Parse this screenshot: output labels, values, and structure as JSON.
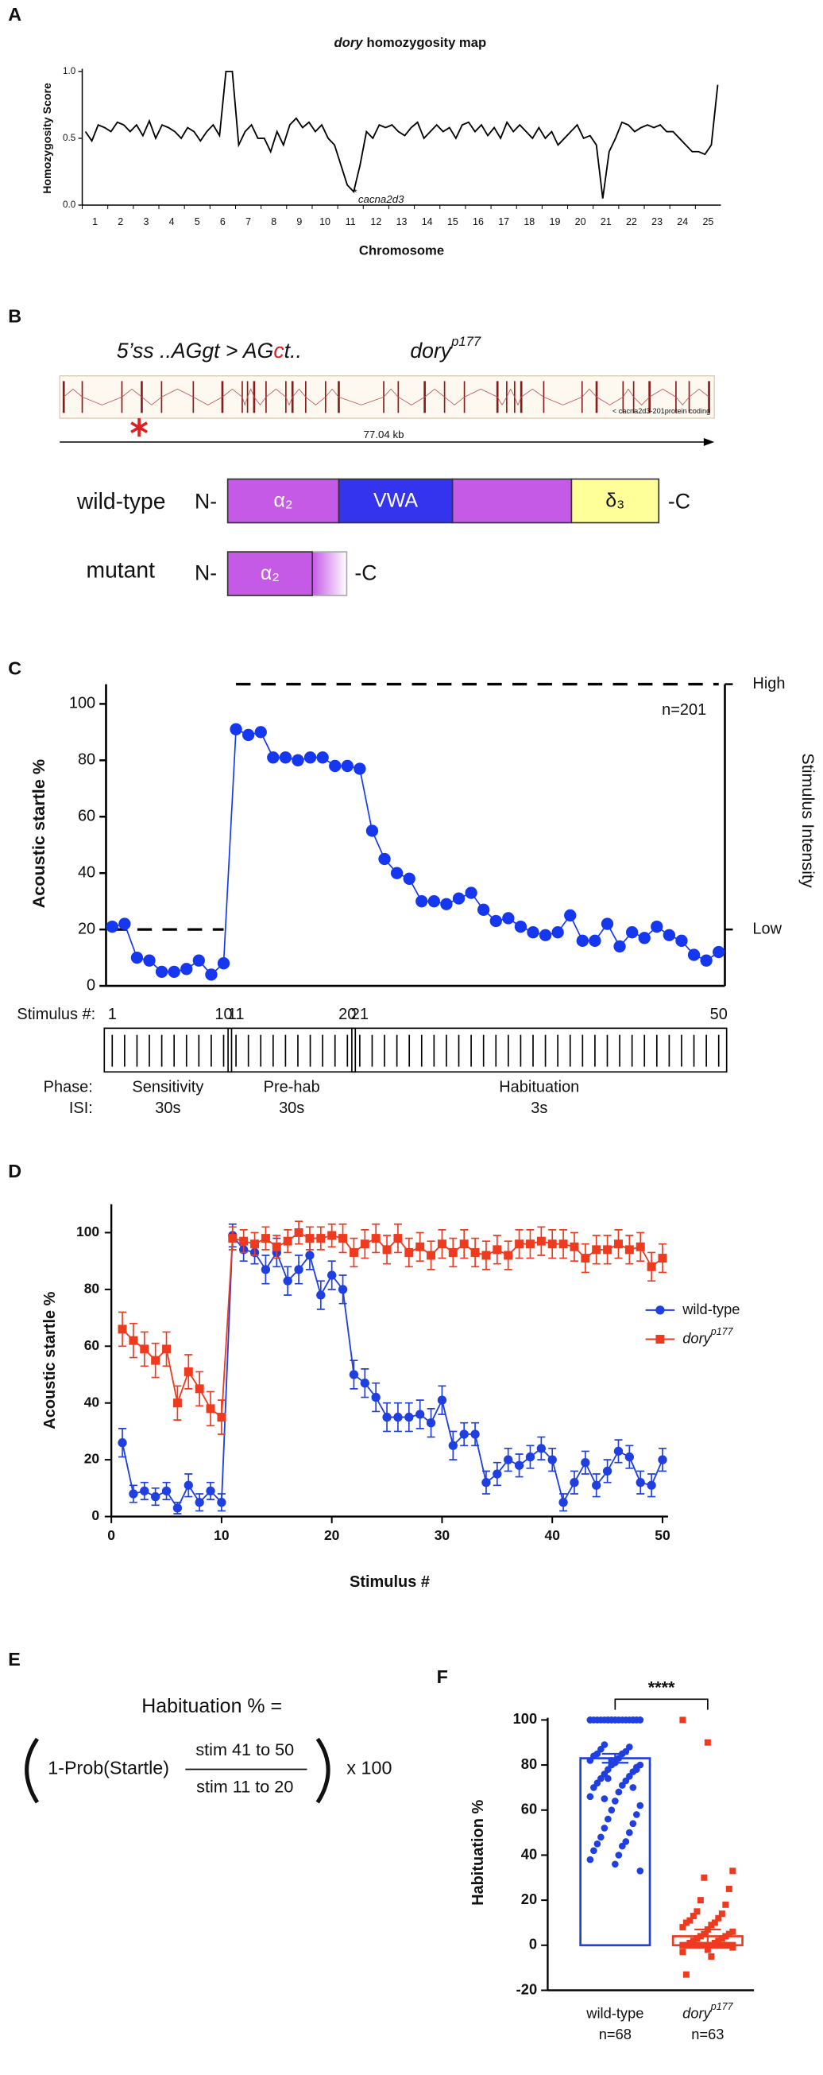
{
  "panel_labels": [
    "A",
    "B",
    "C",
    "D",
    "E",
    "F"
  ],
  "gene": {
    "mutation_prefix": "5’ss ..AGgt > AG",
    "mutation_changed": "c",
    "mutation_suffix": "t..",
    "allele": "dory",
    "allele_sup": "p177",
    "transcript": "< cacna2d3-201protein coding",
    "length": "77.04 kb",
    "wild_type": {
      "label": "wild-type",
      "n_term": "N-",
      "c_term": "-C",
      "domains": [
        "α₂",
        "VWA",
        "δ₃"
      ]
    },
    "mutant": {
      "label": "mutant",
      "n_term": "N-",
      "c_term": "-C",
      "domains": [
        "α₂"
      ]
    }
  },
  "formula": {
    "lhs": "Habituation % =",
    "prob": "1-Prob(Startle)",
    "numerator": "stim 41 to 50",
    "denominator": "stim 11 to 20",
    "factor": "x 100"
  },
  "chart_data": [
    {
      "type": "line",
      "title_gene": "dory",
      "title": "homozygosity map",
      "ylabel": "Homozygosity Score",
      "xlabel": "Chromosome",
      "annotation_marker": "*",
      "annotation": "cacna2d3",
      "color": "#000000",
      "categories": [
        "1",
        "2",
        "3",
        "4",
        "5",
        "6",
        "7",
        "8",
        "9",
        "10",
        "11",
        "12",
        "13",
        "14",
        "15",
        "16",
        "17",
        "18",
        "19",
        "20",
        "21",
        "22",
        "23",
        "24",
        "25"
      ],
      "x": [
        0.125,
        0.375,
        0.625,
        0.875,
        1.125,
        1.375,
        1.625,
        1.875,
        2.125,
        2.375,
        2.625,
        2.875,
        3.125,
        3.375,
        3.625,
        3.875,
        4.125,
        4.375,
        4.625,
        4.875,
        5.125,
        5.375,
        5.625,
        5.875,
        6.125,
        6.375,
        6.625,
        6.875,
        7.125,
        7.375,
        7.625,
        7.875,
        8.125,
        8.375,
        8.625,
        8.875,
        9.125,
        9.375,
        9.625,
        9.875,
        10.125,
        10.375,
        10.625,
        10.875,
        11.125,
        11.375,
        11.625,
        11.875,
        12.125,
        12.375,
        12.625,
        12.875,
        13.125,
        13.375,
        13.625,
        13.875,
        14.125,
        14.375,
        14.625,
        14.875,
        15.125,
        15.375,
        15.625,
        15.875,
        16.125,
        16.375,
        16.625,
        16.875,
        17.125,
        17.375,
        17.625,
        17.875,
        18.125,
        18.375,
        18.625,
        18.875,
        19.125,
        19.375,
        19.625,
        19.875,
        20.125,
        20.375,
        20.625,
        20.875,
        21.125,
        21.375,
        21.625,
        21.875,
        22.125,
        22.375,
        22.625,
        22.875,
        23.125,
        23.375,
        23.625,
        23.875,
        24.125,
        24.375,
        24.625,
        24.875
      ],
      "values": [
        0.55,
        0.48,
        0.6,
        0.58,
        0.55,
        0.62,
        0.6,
        0.55,
        0.6,
        0.52,
        0.63,
        0.5,
        0.6,
        0.58,
        0.55,
        0.5,
        0.58,
        0.55,
        0.48,
        0.55,
        0.6,
        0.52,
        1.0,
        1.0,
        0.45,
        0.55,
        0.6,
        0.5,
        0.5,
        0.4,
        0.55,
        0.45,
        0.6,
        0.65,
        0.58,
        0.62,
        0.55,
        0.6,
        0.5,
        0.45,
        0.3,
        0.15,
        0.1,
        0.3,
        0.55,
        0.5,
        0.6,
        0.58,
        0.6,
        0.55,
        0.52,
        0.58,
        0.62,
        0.5,
        0.55,
        0.6,
        0.55,
        0.58,
        0.5,
        0.6,
        0.62,
        0.55,
        0.6,
        0.52,
        0.58,
        0.5,
        0.62,
        0.55,
        0.6,
        0.55,
        0.5,
        0.58,
        0.5,
        0.55,
        0.45,
        0.5,
        0.55,
        0.6,
        0.5,
        0.52,
        0.45,
        0.05,
        0.4,
        0.5,
        0.62,
        0.6,
        0.55,
        0.58,
        0.6,
        0.58,
        0.6,
        0.55,
        0.55,
        0.5,
        0.45,
        0.4,
        0.4,
        0.38,
        0.45,
        0.9
      ],
      "xlim": [
        0,
        25
      ],
      "ylim": [
        0,
        1
      ],
      "yticks": [
        {
          "value": 0,
          "label": "0.0"
        },
        0.5,
        {
          "value": 1,
          "label": "1.0"
        }
      ]
    },
    {
      "type": "line",
      "ylabel": "Acoustic startle %",
      "y2label": "Stimulus Intensity",
      "annotation": "n=201",
      "color": "#1537f0",
      "values": [
        21,
        22,
        10,
        9,
        5,
        5,
        6,
        9,
        4,
        8,
        91,
        89,
        90,
        81,
        81,
        80,
        81,
        81,
        78,
        78,
        77,
        55,
        45,
        40,
        38,
        30,
        30,
        29,
        31,
        33,
        27,
        23,
        24,
        21,
        19,
        18,
        19,
        25,
        16,
        16,
        22,
        14,
        19,
        17,
        21,
        18,
        16,
        11,
        9,
        12
      ],
      "ylim": [
        0,
        107
      ],
      "yticks": [
        0,
        20,
        40,
        60,
        80,
        100
      ],
      "y2lim": [
        -0.23,
        1
      ],
      "y2ticks": [
        {
          "value": 0,
          "label": "Low"
        },
        {
          "value": 1,
          "label": "High"
        }
      ],
      "intensity": {
        "axis": "y2",
        "values": [
          0,
          0,
          0,
          0,
          0,
          0,
          0,
          0,
          0,
          0,
          1,
          1,
          1,
          1,
          1,
          1,
          1,
          1,
          1,
          1,
          1,
          1,
          1,
          1,
          1,
          1,
          1,
          1,
          1,
          1,
          1,
          1,
          1,
          1,
          1,
          1,
          1,
          1,
          1,
          1,
          1,
          1,
          1,
          1,
          1,
          1,
          1,
          1,
          1,
          1
        ]
      },
      "protocol": {
        "stimulus_label": "Stimulus #:",
        "phase_label": "Phase:",
        "isi_label": "ISI:",
        "phases": [
          {
            "name": "Sensitivity",
            "isi": "30s",
            "start": 1,
            "end": 10
          },
          {
            "name": "Pre-hab",
            "isi": "30s",
            "start": 11,
            "end": 20
          },
          {
            "name": "Habituation",
            "isi": "3s",
            "start": 21,
            "end": 50
          }
        ]
      }
    },
    {
      "type": "line",
      "xlabel": "Stimulus #",
      "ylabel": "Acoustic startle %",
      "legend": "right",
      "x": [
        1,
        2,
        3,
        4,
        5,
        6,
        7,
        8,
        9,
        10,
        11,
        12,
        13,
        14,
        15,
        16,
        17,
        18,
        19,
        20,
        21,
        22,
        23,
        24,
        25,
        26,
        27,
        28,
        29,
        30,
        31,
        32,
        33,
        34,
        35,
        36,
        37,
        38,
        39,
        40,
        41,
        42,
        43,
        44,
        45,
        46,
        47,
        48,
        49,
        50
      ],
      "series": [
        {
          "name": "wild-type",
          "color": "#1f3fe0",
          "marker": "circle",
          "values": [
            26,
            8,
            9,
            7,
            9,
            3,
            11,
            5,
            9,
            5,
            99,
            94,
            93,
            87,
            93,
            83,
            87,
            92,
            78,
            85,
            80,
            50,
            47,
            42,
            35,
            35,
            35,
            36,
            33,
            41,
            25,
            29,
            29,
            12,
            15,
            20,
            18,
            21,
            24,
            20,
            5,
            12,
            19,
            11,
            16,
            23,
            21,
            12,
            11,
            20
          ],
          "errors": [
            5,
            3,
            3,
            3,
            3,
            2,
            4,
            3,
            3,
            3,
            4,
            4,
            4,
            5,
            5,
            5,
            5,
            5,
            5,
            5,
            5,
            5,
            5,
            5,
            5,
            5,
            5,
            5,
            5,
            5,
            5,
            4,
            4,
            4,
            4,
            4,
            4,
            4,
            4,
            4,
            3,
            4,
            4,
            4,
            4,
            4,
            4,
            4,
            4,
            4
          ]
        },
        {
          "name": "dory",
          "name_superscript": "p177",
          "color": "#ee3a1f",
          "marker": "square",
          "values": [
            66,
            62,
            59,
            55,
            59,
            40,
            51,
            45,
            38,
            35,
            98,
            97,
            96,
            98,
            95,
            97,
            100,
            98,
            98,
            99,
            98,
            93,
            96,
            98,
            94,
            98,
            93,
            95,
            92,
            96,
            93,
            96,
            93,
            92,
            94,
            92,
            96,
            96,
            97,
            96,
            96,
            95,
            91,
            94,
            94,
            96,
            94,
            95,
            88,
            91
          ],
          "errors": [
            6,
            6,
            6,
            6,
            6,
            6,
            6,
            6,
            6,
            6,
            4,
            4,
            4,
            4,
            4,
            4,
            4,
            4,
            4,
            4,
            5,
            5,
            5,
            5,
            5,
            5,
            5,
            5,
            5,
            5,
            5,
            5,
            5,
            5,
            5,
            5,
            5,
            5,
            5,
            5,
            5,
            5,
            5,
            5,
            5,
            5,
            5,
            5,
            5,
            5
          ]
        }
      ],
      "xlim": [
        0,
        50.5
      ],
      "xticks": [
        0,
        10,
        20,
        30,
        40,
        50
      ],
      "ylim": [
        0,
        110
      ],
      "yticks": [
        0,
        20,
        40,
        60,
        80,
        100
      ]
    },
    {
      "type": "bar",
      "ylabel": "Habituation %",
      "significance": "****",
      "categories": [
        {
          "name": "wild-type",
          "n": "n=68"
        },
        {
          "name": "dory",
          "sup": "p177",
          "n": "n=63"
        }
      ],
      "colors": [
        "#1f3fe0",
        "#ee3a1f"
      ],
      "values": [
        83,
        4
      ],
      "errors": [
        2,
        3
      ],
      "points": [
        [
          100,
          100,
          100,
          100,
          100,
          100,
          100,
          100,
          100,
          100,
          100,
          100,
          100,
          100,
          100,
          100,
          100,
          100,
          100,
          100,
          100,
          100,
          89,
          88,
          87,
          86,
          85,
          85,
          84,
          83,
          82,
          81,
          80,
          80,
          79,
          78,
          77,
          76,
          75,
          74,
          73,
          72,
          71,
          70,
          68,
          66,
          64,
          62,
          60,
          58,
          56,
          54,
          52,
          50,
          48,
          46,
          45,
          44,
          42,
          40,
          38,
          36,
          33,
          82,
          78,
          74,
          70,
          65
        ],
        [
          100,
          90,
          33,
          30,
          25,
          20,
          18,
          15,
          14,
          13,
          12,
          11,
          10,
          10,
          9,
          8,
          7,
          6,
          5,
          5,
          4,
          4,
          3,
          3,
          2,
          2,
          1,
          1,
          -13,
          -5,
          -3,
          -2,
          -1,
          0,
          0,
          0,
          0,
          0,
          0,
          0,
          0,
          0,
          0,
          0,
          0,
          0,
          0,
          0,
          0,
          0,
          0,
          0,
          0,
          0,
          0,
          0,
          0,
          0,
          0,
          0,
          0,
          0,
          0
        ]
      ],
      "ylim": [
        -20,
        101
      ],
      "yticks": [
        -20,
        0,
        20,
        40,
        60,
        80,
        100
      ]
    }
  ]
}
